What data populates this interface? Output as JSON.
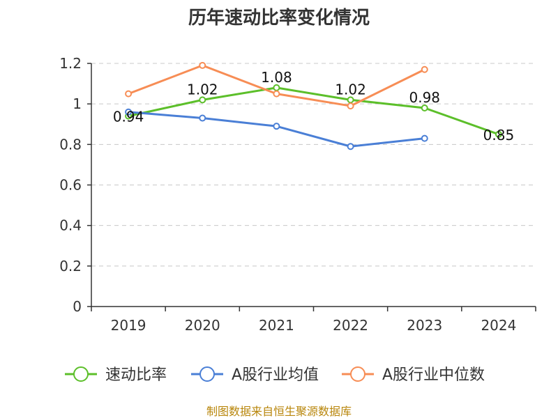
{
  "chart_data": {
    "type": "line",
    "title": "历年速动比率变化情况",
    "categories": [
      "2019",
      "2020",
      "2021",
      "2022",
      "2023",
      "2024"
    ],
    "ylim": [
      0,
      1.2
    ],
    "yticks": [
      "0",
      "0.2",
      "0.4",
      "0.6",
      "0.8",
      "1",
      "1.2"
    ],
    "ytick_values": [
      0,
      0.2,
      0.4,
      0.6,
      0.8,
      1.0,
      1.2
    ],
    "grid": true,
    "legend_position": "bottom",
    "series": [
      {
        "name": "速动比率",
        "color": "#5cbf2a",
        "values": [
          0.94,
          1.02,
          1.08,
          1.02,
          0.98,
          0.85
        ],
        "labels": [
          "0.94",
          "1.02",
          "1.08",
          "1.02",
          "0.98",
          "0.85"
        ],
        "show_labels": true
      },
      {
        "name": "A股行业均值",
        "color": "#4a7fd6",
        "values": [
          0.96,
          0.93,
          0.89,
          0.79,
          0.83,
          null
        ],
        "show_labels": false
      },
      {
        "name": "A股行业中位数",
        "color": "#f78d55",
        "values": [
          1.05,
          1.19,
          1.05,
          0.99,
          1.17,
          null
        ],
        "show_labels": false
      }
    ]
  },
  "footer": {
    "source": "制图数据来自恒生聚源数据库",
    "source_color": "#b8860b"
  }
}
